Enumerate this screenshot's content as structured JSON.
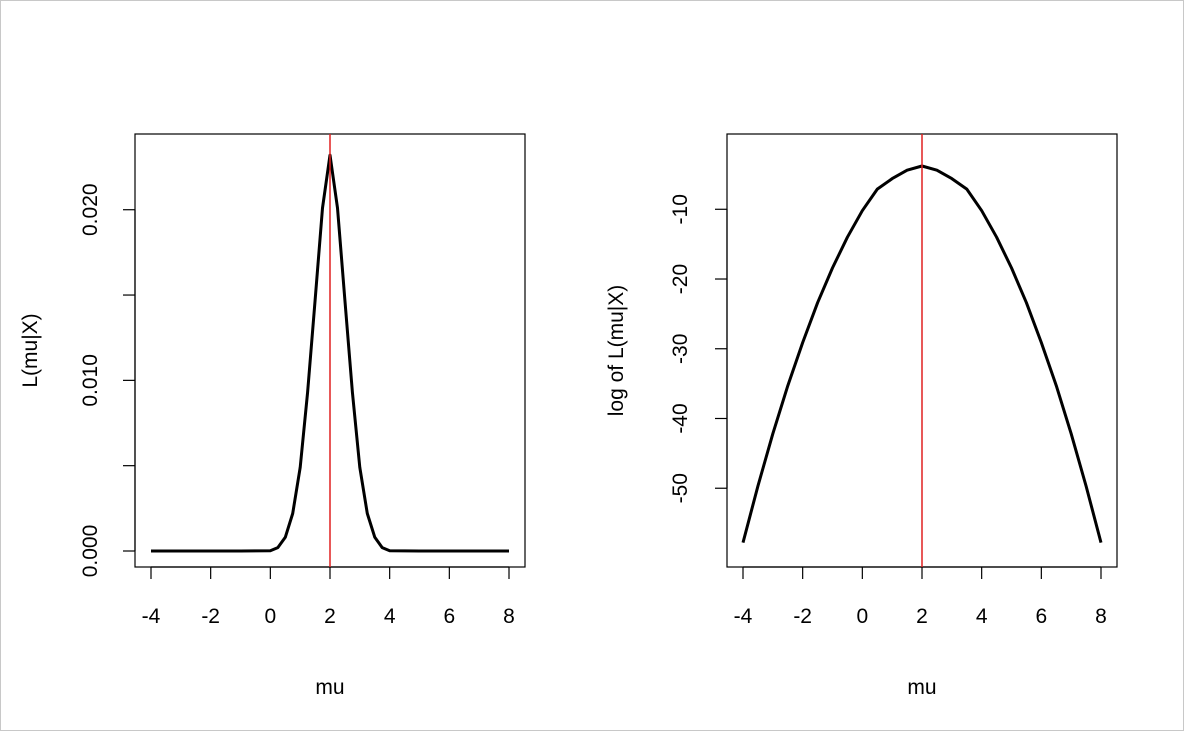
{
  "chart_data": [
    {
      "type": "line",
      "title": "",
      "xlabel": "mu",
      "ylabel": "L(mu|X)",
      "xlim": [
        -4,
        8
      ],
      "ylim": [
        0,
        0.0235
      ],
      "x_ticks": [
        -4,
        -2,
        0,
        2,
        4,
        6,
        8
      ],
      "x_tick_labels": [
        "-4",
        "-2",
        "0",
        "2",
        "4",
        "6",
        "8"
      ],
      "y_ticks": [
        0.0,
        0.005,
        0.01,
        0.015,
        0.02
      ],
      "y_tick_labels": [
        "0.000",
        "",
        "0.010",
        "",
        "0.020"
      ],
      "grid": false,
      "vline": {
        "x": 2,
        "color": "#e02020"
      },
      "series": [
        {
          "color": "#000000",
          "x": [
            -4,
            -3,
            -2,
            -1,
            0,
            0.25,
            0.5,
            0.75,
            1,
            1.25,
            1.5,
            1.75,
            2,
            2.25,
            2.5,
            2.75,
            3,
            3.25,
            3.5,
            3.75,
            4,
            5,
            6,
            7,
            8
          ],
          "y": [
            0,
            0,
            0,
            0,
            2e-05,
            0.0002,
            0.0008,
            0.0022,
            0.0049,
            0.0093,
            0.0147,
            0.0201,
            0.0232,
            0.0201,
            0.0147,
            0.0093,
            0.0049,
            0.0022,
            0.0008,
            0.0002,
            2e-05,
            0,
            0,
            0,
            0
          ]
        }
      ]
    },
    {
      "type": "line",
      "title": "",
      "xlabel": "mu",
      "ylabel": "log of L(mu|X)",
      "xlim": [
        -4,
        8
      ],
      "ylim": [
        -59,
        -1.5
      ],
      "x_ticks": [
        -4,
        -2,
        0,
        2,
        4,
        6,
        8
      ],
      "x_tick_labels": [
        "-4",
        "-2",
        "0",
        "2",
        "4",
        "6",
        "8"
      ],
      "y_ticks": [
        -50,
        -40,
        -30,
        -20,
        -10
      ],
      "y_tick_labels": [
        "-50",
        "-40",
        "-30",
        "-20",
        "-10"
      ],
      "grid": false,
      "vline": {
        "x": 2,
        "color": "#e02020"
      },
      "series": [
        {
          "color": "#000000",
          "x": [
            -4,
            -3.5,
            -3,
            -2.5,
            -2,
            -1.5,
            -1,
            -0.5,
            0,
            0.5,
            1,
            1.5,
            2,
            2.5,
            3,
            3.5,
            4,
            4.5,
            5,
            5.5,
            6,
            6.5,
            7,
            7.5,
            8
          ],
          "y": [
            -57.8,
            -49.7,
            -42.2,
            -35.3,
            -29.1,
            -23.4,
            -18.4,
            -14.0,
            -10.2,
            -7.1,
            -5.6,
            -4.4,
            -3.8,
            -4.4,
            -5.6,
            -7.1,
            -10.2,
            -14.0,
            -18.4,
            -23.4,
            -29.1,
            -35.3,
            -42.2,
            -49.7,
            -57.8
          ]
        }
      ]
    }
  ]
}
